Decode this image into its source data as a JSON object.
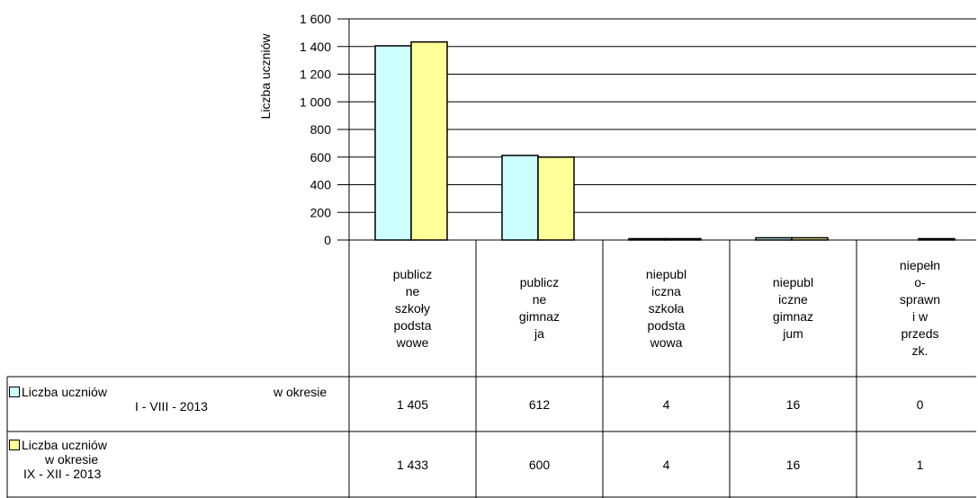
{
  "chart_data": {
    "type": "bar",
    "ylabel": "Liczba uczniów",
    "ylim": [
      0,
      1600
    ],
    "yticks": [
      "0",
      "200",
      "400",
      "600",
      "800",
      "1 000",
      "1 200",
      "1 400",
      "1 600"
    ],
    "ytick_values": [
      0,
      200,
      400,
      600,
      800,
      1000,
      1200,
      1400,
      1600
    ],
    "categories": [
      "publiczne szkoły podstawowe",
      "publiczne gimnazja",
      "niepubliczna szkoła podstawowa",
      "niepubliczne gimnazjum",
      "niepełnosprawni w przedszk."
    ],
    "category_lines": [
      [
        "publicz",
        "ne",
        "szkoły",
        "podsta",
        "wowe"
      ],
      [
        "publicz",
        "ne",
        "gimnaz",
        "ja"
      ],
      [
        "niepubl",
        "iczna",
        "szkoła",
        "podsta",
        "wowa"
      ],
      [
        "niepubl",
        "iczne",
        "gimnaz",
        "jum"
      ],
      [
        "niepełn",
        "o-",
        "sprawn",
        "i w",
        "przeds",
        "zk."
      ]
    ],
    "series": [
      {
        "name": "Liczba uczniów w okresie I - VIII - 2013",
        "name_line1": "Liczba uczniów",
        "name_line1b": "w okresie",
        "name_line2": "I - VIII - 2013",
        "color": "#ccffff",
        "values": [
          1405,
          612,
          4,
          16,
          0
        ],
        "value_labels": [
          "1 405",
          "612",
          "4",
          "16",
          "0"
        ]
      },
      {
        "name": "Liczba uczniów w okresie IX - XII - 2013",
        "name_line1": "Liczba uczniów",
        "name_line2": "w okresie",
        "name_line3": "IX - XII - 2013",
        "color": "#ffff99",
        "values": [
          1433,
          600,
          4,
          16,
          1
        ],
        "value_labels": [
          "1 433",
          "600",
          "4",
          "16",
          "1"
        ]
      }
    ],
    "grid": true,
    "legend": "data table below chart"
  }
}
